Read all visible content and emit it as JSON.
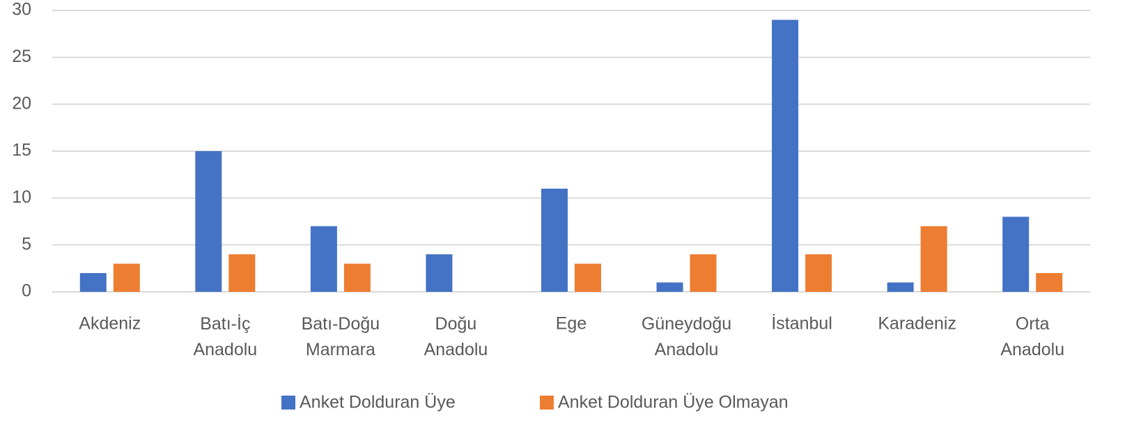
{
  "chart_data": {
    "type": "bar",
    "categories": [
      "Akdeniz",
      "Batı-İç Anadolu",
      "Batı-Doğu Marmara",
      "Doğu Anadolu",
      "Ege",
      "Güneydoğu Anadolu",
      "İstanbul",
      "Karadeniz",
      "Orta Anadolu"
    ],
    "series": [
      {
        "name": "Anket Dolduran Üye",
        "color": "#4472c4",
        "values": [
          2,
          15,
          7,
          4,
          11,
          1,
          29,
          1,
          8
        ]
      },
      {
        "name": "Anket Dolduran Üye Olmayan",
        "color": "#ed7d31",
        "values": [
          3,
          4,
          3,
          0,
          3,
          4,
          4,
          7,
          2
        ]
      }
    ],
    "ylim": [
      0,
      30
    ],
    "yticks": [
      0,
      5,
      10,
      15,
      20,
      25,
      30
    ],
    "grid": true,
    "legend": "bottom"
  }
}
